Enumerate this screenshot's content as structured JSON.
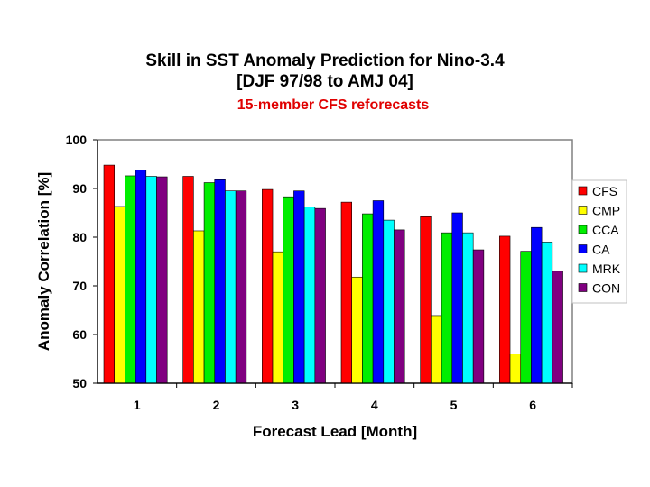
{
  "chart_data": {
    "type": "bar",
    "title_line1": "Skill in SST Anomaly Prediction for Nino-3.4",
    "title_line2": "[DJF 97/98 to AMJ 04]",
    "subtitle": "15-member CFS reforecasts",
    "xlabel": "Forecast Lead [Month]",
    "ylabel": "Anomaly Correlation [%]",
    "categories": [
      "1",
      "2",
      "3",
      "4",
      "5",
      "6"
    ],
    "ylim": [
      50,
      100
    ],
    "yticks": [
      "50",
      "60",
      "70",
      "80",
      "90",
      "100"
    ],
    "grid": false,
    "legend_position": "right",
    "series": [
      {
        "name": "CFS",
        "color": "#ff0000",
        "values": [
          94.8,
          92.5,
          89.8,
          87.2,
          84.2,
          80.2
        ]
      },
      {
        "name": "CMP",
        "color": "#ffff00",
        "values": [
          86.3,
          81.3,
          77.0,
          71.8,
          63.9,
          56.0
        ]
      },
      {
        "name": "CCA",
        "color": "#00ee00",
        "values": [
          92.6,
          91.2,
          88.3,
          84.8,
          80.9,
          77.1
        ]
      },
      {
        "name": "CA",
        "color": "#0000ff",
        "values": [
          93.8,
          91.8,
          89.5,
          87.5,
          85.0,
          82.0
        ]
      },
      {
        "name": "MRK",
        "color": "#00ffff",
        "values": [
          92.5,
          89.5,
          86.2,
          83.5,
          80.9,
          79.0
        ]
      },
      {
        "name": "CON",
        "color": "#800080",
        "values": [
          92.4,
          89.5,
          85.9,
          81.5,
          77.4,
          73.0
        ]
      }
    ]
  }
}
